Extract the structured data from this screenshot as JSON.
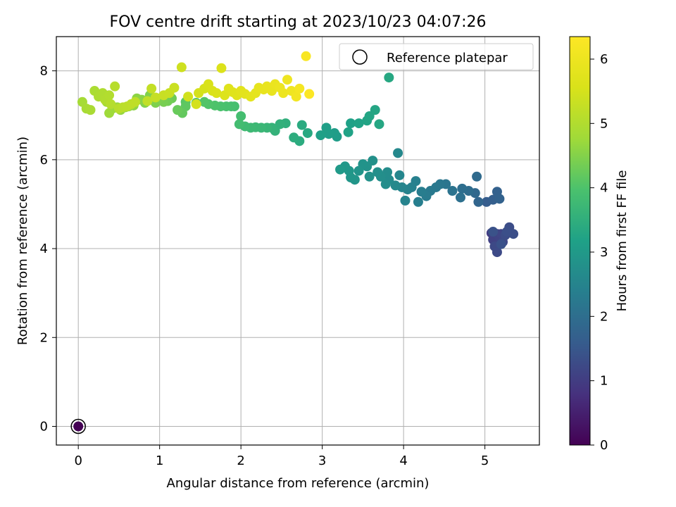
{
  "chart_data": {
    "type": "scatter",
    "title": "FOV centre drift starting at 2023/10/23 04:07:26",
    "xlabel": "Angular distance from reference (arcmin)",
    "ylabel": "Rotation from reference (arcmin)",
    "xlim": [
      -0.27,
      5.67
    ],
    "ylim": [
      -0.42,
      8.77
    ],
    "xticks": [
      0,
      1,
      2,
      3,
      4,
      5
    ],
    "yticks": [
      0,
      2,
      4,
      6,
      8
    ],
    "grid": true,
    "colorbar": {
      "label": "Hours from first FF file",
      "colormap": "viridis",
      "range": [
        0,
        6.35
      ],
      "ticks": [
        0,
        1,
        2,
        3,
        4,
        5,
        6
      ]
    },
    "legend": {
      "location": "upper right",
      "entries": [
        {
          "label": "Reference platepar",
          "marker": "open-circle"
        }
      ]
    },
    "reference_point": {
      "x": 0,
      "y": 0
    },
    "series": [
      {
        "marker": "filled-circle",
        "points": [
          [
            0.0,
            0.0,
            0.0
          ],
          [
            5.08,
            4.35,
            1.0
          ],
          [
            5.12,
            4.3,
            1.05
          ],
          [
            5.1,
            4.2,
            1.08
          ],
          [
            5.15,
            4.33,
            1.1
          ],
          [
            5.18,
            4.25,
            1.12
          ],
          [
            5.2,
            4.33,
            1.15
          ],
          [
            5.22,
            4.15,
            1.2
          ],
          [
            5.12,
            4.05,
            1.22
          ],
          [
            5.15,
            3.92,
            1.25
          ],
          [
            5.25,
            4.3,
            1.28
          ],
          [
            5.3,
            4.48,
            1.3
          ],
          [
            5.35,
            4.33,
            1.33
          ],
          [
            5.27,
            4.38,
            1.35
          ],
          [
            5.2,
            4.1,
            1.38
          ],
          [
            5.1,
            4.38,
            1.4
          ],
          [
            5.02,
            5.05,
            1.6
          ],
          [
            5.1,
            5.1,
            1.65
          ],
          [
            5.15,
            5.28,
            1.7
          ],
          [
            5.18,
            5.12,
            1.72
          ],
          [
            4.92,
            5.05,
            1.8
          ],
          [
            4.88,
            5.25,
            1.85
          ],
          [
            4.9,
            5.62,
            1.9
          ],
          [
            4.8,
            5.3,
            1.95
          ],
          [
            4.72,
            5.35,
            2.0
          ],
          [
            4.7,
            5.15,
            2.05
          ],
          [
            4.6,
            5.3,
            2.1
          ],
          [
            4.52,
            5.45,
            2.15
          ],
          [
            4.45,
            5.45,
            2.2
          ],
          [
            4.4,
            5.38,
            2.22
          ],
          [
            4.33,
            5.3,
            2.25
          ],
          [
            4.28,
            5.18,
            2.3
          ],
          [
            4.22,
            5.28,
            2.33
          ],
          [
            4.18,
            5.05,
            2.36
          ],
          [
            4.15,
            5.52,
            2.4
          ],
          [
            4.1,
            5.38,
            2.42
          ],
          [
            4.05,
            5.33,
            2.45
          ],
          [
            4.02,
            5.08,
            2.48
          ],
          [
            3.98,
            5.38,
            2.5
          ],
          [
            3.95,
            5.65,
            2.55
          ],
          [
            3.93,
            6.15,
            2.6
          ],
          [
            3.9,
            5.42,
            2.62
          ],
          [
            3.82,
            5.55,
            2.65
          ],
          [
            3.8,
            5.72,
            2.68
          ],
          [
            3.78,
            5.45,
            2.7
          ],
          [
            3.72,
            5.62,
            2.72
          ],
          [
            3.68,
            5.72,
            2.75
          ],
          [
            3.62,
            5.98,
            2.78
          ],
          [
            3.58,
            5.62,
            2.8
          ],
          [
            3.55,
            5.85,
            2.82
          ],
          [
            3.5,
            5.9,
            2.85
          ],
          [
            3.45,
            5.75,
            2.88
          ],
          [
            3.4,
            5.55,
            2.9
          ],
          [
            3.35,
            5.6,
            2.92
          ],
          [
            3.33,
            5.75,
            2.95
          ],
          [
            3.28,
            5.85,
            2.97
          ],
          [
            3.22,
            5.78,
            3.0
          ],
          [
            3.18,
            6.52,
            3.05
          ],
          [
            3.15,
            6.6,
            3.08
          ],
          [
            3.08,
            6.58,
            3.1
          ],
          [
            3.05,
            6.72,
            3.12
          ],
          [
            2.98,
            6.55,
            3.15
          ],
          [
            3.35,
            6.82,
            3.18
          ],
          [
            3.32,
            6.62,
            3.2
          ],
          [
            3.45,
            6.82,
            3.22
          ],
          [
            3.55,
            6.88,
            3.25
          ],
          [
            3.58,
            6.98,
            3.27
          ],
          [
            3.65,
            7.12,
            3.28
          ],
          [
            3.7,
            6.8,
            3.3
          ],
          [
            3.82,
            7.85,
            3.32
          ],
          [
            2.82,
            6.6,
            3.35
          ],
          [
            2.75,
            6.78,
            3.4
          ],
          [
            2.72,
            6.42,
            3.42
          ],
          [
            2.65,
            6.5,
            3.45
          ],
          [
            2.55,
            6.82,
            3.5
          ],
          [
            2.48,
            6.8,
            3.55
          ],
          [
            2.42,
            6.65,
            3.58
          ],
          [
            2.38,
            6.72,
            3.6
          ],
          [
            2.32,
            6.72,
            3.65
          ],
          [
            2.25,
            6.72,
            3.7
          ],
          [
            2.18,
            6.73,
            3.72
          ],
          [
            2.12,
            6.72,
            3.75
          ],
          [
            2.05,
            6.75,
            3.8
          ],
          [
            1.98,
            6.8,
            3.85
          ],
          [
            2.0,
            6.98,
            3.88
          ],
          [
            1.92,
            7.2,
            3.9
          ],
          [
            1.88,
            7.2,
            3.92
          ],
          [
            1.82,
            7.2,
            3.95
          ],
          [
            1.75,
            7.2,
            3.97
          ],
          [
            1.68,
            7.22,
            4.0
          ],
          [
            1.6,
            7.25,
            4.02
          ],
          [
            1.55,
            7.3,
            4.05
          ],
          [
            1.45,
            7.28,
            4.08
          ],
          [
            1.32,
            7.3,
            4.1
          ],
          [
            1.32,
            7.2,
            4.15
          ],
          [
            1.28,
            7.05,
            4.2
          ],
          [
            1.22,
            7.12,
            4.25
          ],
          [
            1.15,
            7.38,
            4.3
          ],
          [
            1.1,
            7.32,
            4.35
          ],
          [
            1.05,
            7.3,
            4.38
          ],
          [
            1.0,
            7.38,
            4.42
          ],
          [
            0.95,
            7.28,
            4.45
          ],
          [
            0.88,
            7.45,
            4.48
          ],
          [
            0.82,
            7.28,
            4.5
          ],
          [
            0.78,
            7.35,
            4.55
          ],
          [
            0.72,
            7.38,
            4.58
          ],
          [
            0.68,
            7.22,
            4.6
          ],
          [
            0.62,
            7.2,
            4.62
          ],
          [
            0.58,
            7.18,
            4.65
          ],
          [
            0.52,
            7.12,
            4.68
          ],
          [
            0.48,
            7.18,
            4.7
          ],
          [
            0.42,
            7.15,
            4.72
          ],
          [
            0.38,
            7.05,
            4.75
          ],
          [
            0.35,
            7.3,
            4.78
          ],
          [
            0.05,
            7.3,
            4.85
          ],
          [
            0.1,
            7.15,
            4.88
          ],
          [
            0.15,
            7.12,
            4.9
          ],
          [
            0.2,
            7.55,
            4.92
          ],
          [
            0.25,
            7.42,
            4.95
          ],
          [
            0.3,
            7.5,
            4.97
          ],
          [
            0.33,
            7.35,
            5.0
          ],
          [
            0.38,
            7.45,
            5.02
          ],
          [
            0.4,
            7.25,
            5.05
          ],
          [
            0.45,
            7.65,
            5.08
          ],
          [
            0.5,
            7.15,
            5.1
          ],
          [
            0.55,
            7.18,
            5.12
          ],
          [
            0.6,
            7.2,
            5.15
          ],
          [
            0.65,
            7.25,
            5.18
          ],
          [
            0.7,
            7.3,
            5.2
          ],
          [
            0.85,
            7.32,
            5.22
          ],
          [
            0.9,
            7.6,
            5.25
          ],
          [
            0.95,
            7.4,
            5.28
          ],
          [
            1.05,
            7.45,
            5.3
          ],
          [
            1.12,
            7.5,
            5.32
          ],
          [
            1.18,
            7.62,
            5.35
          ],
          [
            1.27,
            8.08,
            5.4
          ],
          [
            1.35,
            7.42,
            5.45
          ],
          [
            1.45,
            7.25,
            5.48
          ],
          [
            1.48,
            7.5,
            5.5
          ],
          [
            1.55,
            7.6,
            5.52
          ],
          [
            1.6,
            7.7,
            5.55
          ],
          [
            1.65,
            7.55,
            5.58
          ],
          [
            1.7,
            7.5,
            5.6
          ],
          [
            1.76,
            8.06,
            5.62
          ],
          [
            1.8,
            7.45,
            5.65
          ],
          [
            1.85,
            7.6,
            5.68
          ],
          [
            1.9,
            7.52,
            5.7
          ],
          [
            1.95,
            7.45,
            5.72
          ],
          [
            2.0,
            7.55,
            5.75
          ],
          [
            2.05,
            7.48,
            5.78
          ],
          [
            2.12,
            7.42,
            5.8
          ],
          [
            2.18,
            7.5,
            5.82
          ],
          [
            2.22,
            7.62,
            5.85
          ],
          [
            2.28,
            7.58,
            5.88
          ],
          [
            2.32,
            7.65,
            5.9
          ],
          [
            2.38,
            7.55,
            5.92
          ],
          [
            2.42,
            7.7,
            5.95
          ],
          [
            2.48,
            7.62,
            5.98
          ],
          [
            2.52,
            7.5,
            6.0
          ],
          [
            2.57,
            7.8,
            6.03
          ],
          [
            2.62,
            7.55,
            6.05
          ],
          [
            2.68,
            7.42,
            6.1
          ],
          [
            2.72,
            7.6,
            6.15
          ],
          [
            2.8,
            8.33,
            6.25
          ],
          [
            2.84,
            7.48,
            6.32
          ]
        ]
      }
    ]
  }
}
